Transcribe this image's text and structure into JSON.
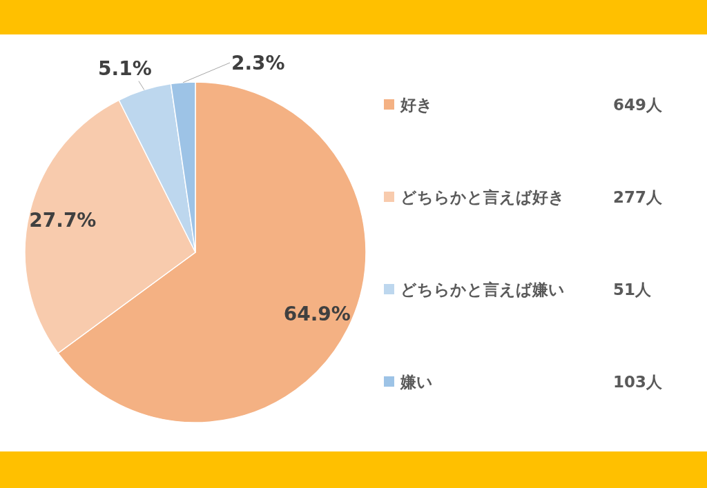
{
  "chart_data": {
    "type": "pie",
    "categories": [
      "好き",
      "どちらかと言えば好き",
      "どちらかと言えば嫌い",
      "嫌い"
    ],
    "values": [
      64.9,
      27.7,
      5.1,
      2.3
    ],
    "value_labels": [
      "64.9%",
      "27.7%",
      "5.1%",
      "2.3%"
    ],
    "colors": [
      "#f4b183",
      "#f8cbad",
      "#bdd7ee",
      "#9dc3e6"
    ],
    "annotations": [
      "649人",
      "277人",
      "51人",
      "103人"
    ],
    "legend": "right"
  }
}
